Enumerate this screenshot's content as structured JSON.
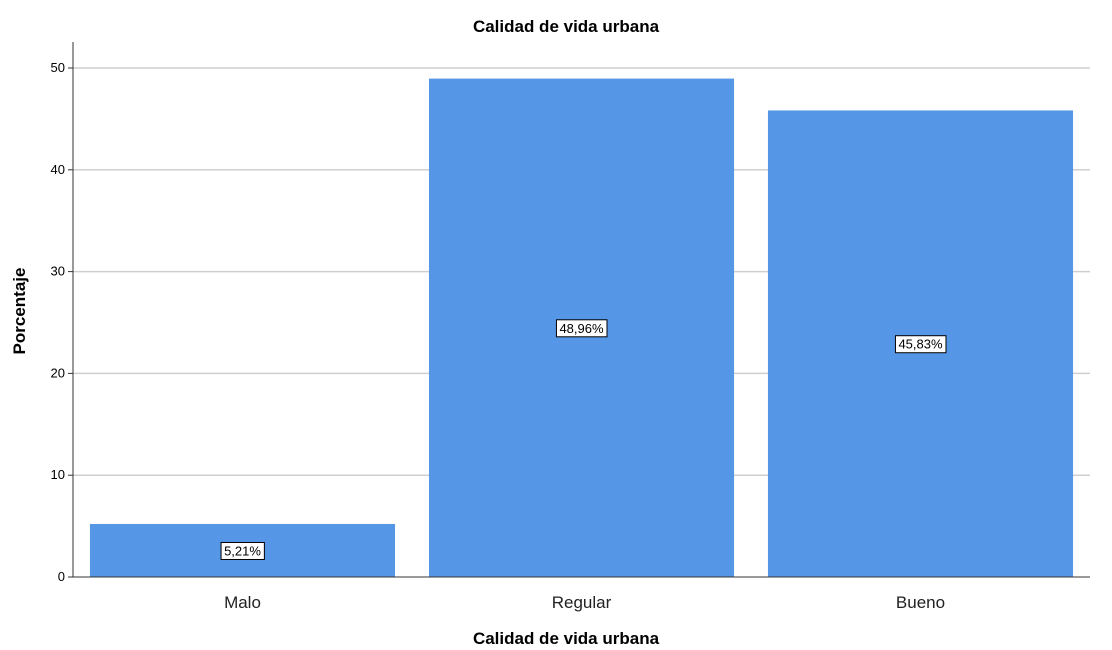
{
  "chart_data": {
    "type": "bar",
    "title": "Calidad de vida urbana",
    "xlabel": "Calidad de vida urbana",
    "ylabel": "Porcentaje",
    "categories": [
      "Malo",
      "Regular",
      "Bueno"
    ],
    "values": [
      5.21,
      48.96,
      45.83
    ],
    "data_labels": [
      "5,21%",
      "48,96%",
      "45,83%"
    ],
    "ylim": [
      0,
      52
    ],
    "yticks": [
      "0",
      "10",
      "20",
      "30",
      "40",
      "50"
    ],
    "grid": true,
    "bar_color": "#5596e6",
    "grid_color": "#cfcfcf"
  }
}
